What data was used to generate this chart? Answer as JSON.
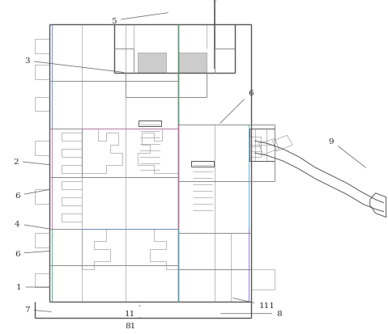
{
  "bg": "#ffffff",
  "lc_main": "#8a8a8a",
  "lc_dark": "#555555",
  "lc_light": "#aaaaaa",
  "lw_main": 0.7,
  "lw_thick": 1.0,
  "lw_thin": 0.4,
  "label_fs": 7.5,
  "label_color": "#333333",
  "ann_color": "#555555",
  "ann_lw": 0.5,
  "colors": {
    "blue": "#5588cc",
    "pink": "#cc66aa",
    "green": "#44aa77",
    "cyan": "#44aacc",
    "purple": "#8866cc",
    "red_light": "#cc6655"
  },
  "figw": 4.79,
  "figh": 4.14,
  "dpi": 100
}
